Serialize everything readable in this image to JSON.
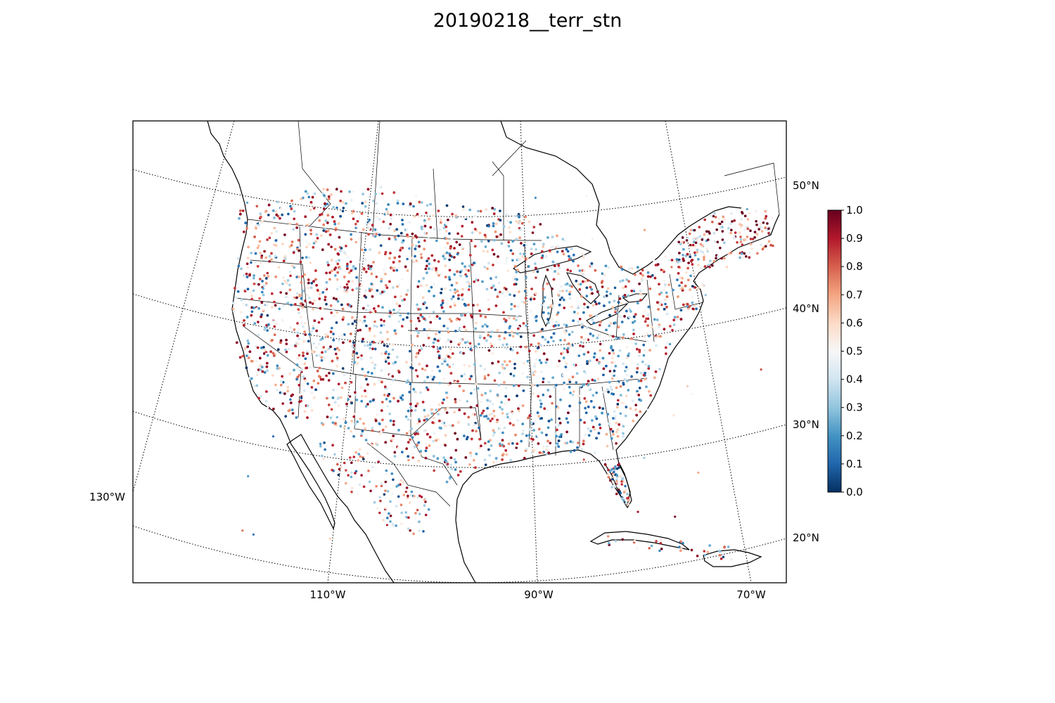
{
  "title": "20190218__terr_stn",
  "map": {
    "projection": "lambert-conformal",
    "lon_labels": [
      "110°W",
      "90°W",
      "70°W"
    ],
    "lon_label_left": "130°W",
    "lat_labels": [
      "50°N",
      "40°N",
      "30°N",
      "20°N"
    ]
  },
  "colorbar": {
    "colormap": "RdBu_r",
    "ticks": [
      "0.0",
      "0.1",
      "0.2",
      "0.3",
      "0.4",
      "0.5",
      "0.6",
      "0.7",
      "0.8",
      "0.9",
      "1.0"
    ],
    "range": [
      0.0,
      1.0
    ]
  },
  "chart_data": {
    "type": "scatter",
    "title": "20190218__terr_stn",
    "value_range": [
      0,
      1
    ],
    "grid": true,
    "stations_note": "dense station scatter over North America (contiguous US, southern Canada, northern Mexico, Caribbean)",
    "colors": {
      "low": "#053061",
      "mid": "#f7f7f7",
      "high": "#67001f"
    }
  }
}
